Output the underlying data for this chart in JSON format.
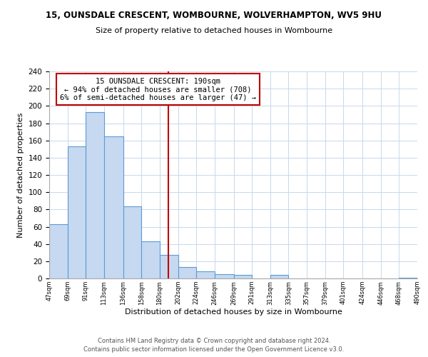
{
  "title": "15, OUNSDALE CRESCENT, WOMBOURNE, WOLVERHAMPTON, WV5 9HU",
  "subtitle": "Size of property relative to detached houses in Wombourne",
  "xlabel": "Distribution of detached houses by size in Wombourne",
  "ylabel": "Number of detached properties",
  "bar_color": "#c6d9f0",
  "bar_edge_color": "#5b9bd5",
  "annotation_box_edge_color": "#c00000",
  "annotation_text_line1": "15 OUNSDALE CRESCENT: 190sqm",
  "annotation_text_line2": "← 94% of detached houses are smaller (708)",
  "annotation_text_line3": "6% of semi-detached houses are larger (47) →",
  "vline_x": 190,
  "vline_color": "#c00000",
  "footer_line1": "Contains HM Land Registry data © Crown copyright and database right 2024.",
  "footer_line2": "Contains public sector information licensed under the Open Government Licence v3.0.",
  "ylim": [
    0,
    240
  ],
  "yticks": [
    0,
    20,
    40,
    60,
    80,
    100,
    120,
    140,
    160,
    180,
    200,
    220,
    240
  ],
  "bin_edges": [
    47,
    69,
    91,
    113,
    136,
    158,
    180,
    202,
    224,
    246,
    269,
    291,
    313,
    335,
    357,
    379,
    401,
    424,
    446,
    468,
    490
  ],
  "bin_labels": [
    "47sqm",
    "69sqm",
    "91sqm",
    "113sqm",
    "136sqm",
    "158sqm",
    "180sqm",
    "202sqm",
    "224sqm",
    "246sqm",
    "269sqm",
    "291sqm",
    "313sqm",
    "335sqm",
    "357sqm",
    "379sqm",
    "401sqm",
    "424sqm",
    "446sqm",
    "468sqm",
    "490sqm"
  ],
  "bar_heights": [
    63,
    153,
    193,
    165,
    84,
    43,
    27,
    13,
    8,
    5,
    4,
    0,
    4,
    0,
    0,
    0,
    0,
    0,
    0,
    1
  ]
}
